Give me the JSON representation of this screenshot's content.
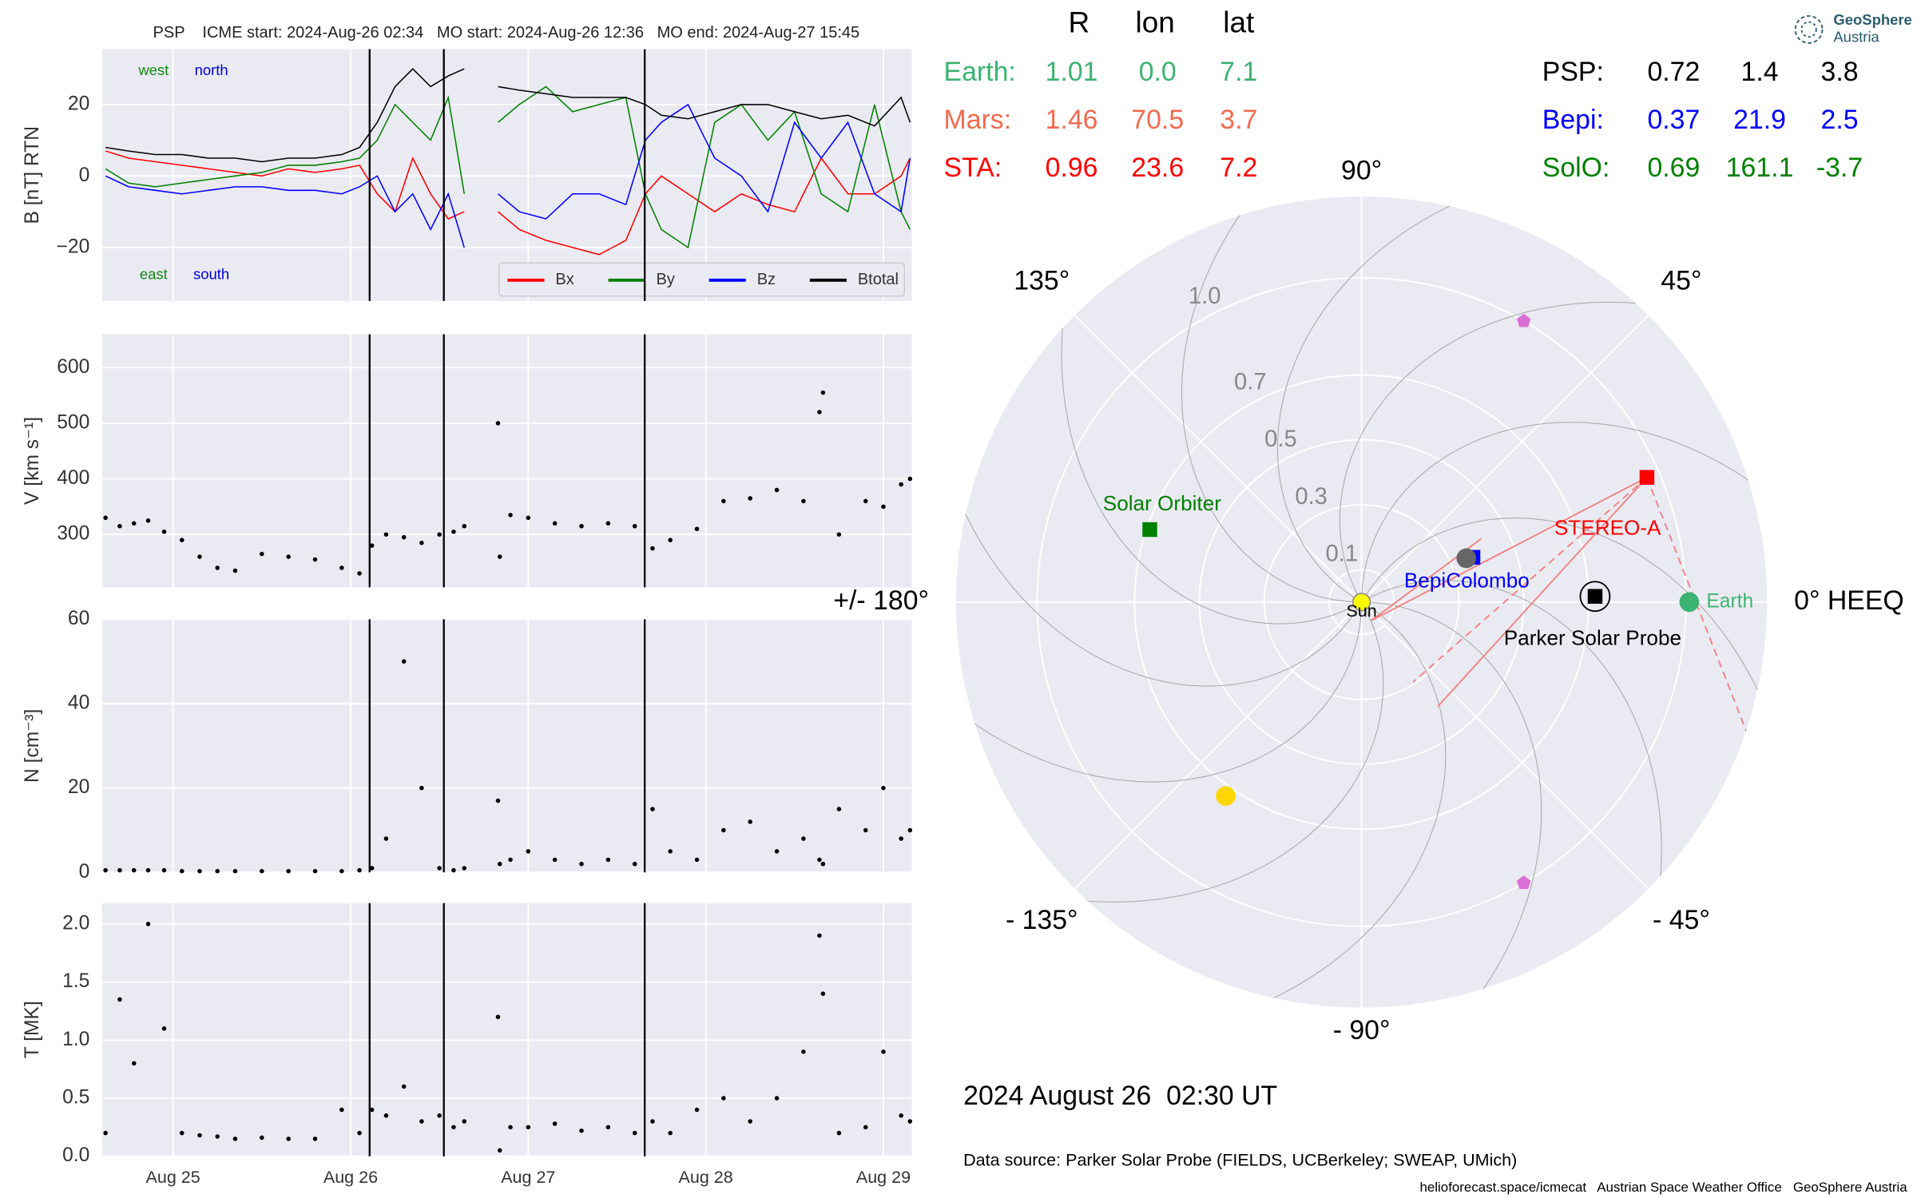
{
  "chart_data": [
    {
      "type": "line",
      "title": "PSP    ICME start: 2024-Aug-26 02:34   MO start: 2024-Aug-26 12:36   MO end: 2024-Aug-27 15:45",
      "ylabel": "B [nT] RTN",
      "ylim": [
        -35,
        35.5
      ],
      "yticks": [
        {
          "value": -20,
          "label": "−20"
        },
        0,
        20
      ],
      "grid": true,
      "legend_loc": "lower right",
      "annotations": [
        {
          "text": "west",
          "color": "#118811"
        },
        {
          "text": "north",
          "color": "#0000dd"
        },
        {
          "text": "east",
          "color": "#118811"
        },
        {
          "text": "south",
          "color": "#0000dd"
        }
      ],
      "x": [
        24.62,
        24.75,
        24.9,
        25.05,
        25.2,
        25.35,
        25.5,
        25.65,
        25.8,
        25.95,
        26.05,
        26.15,
        26.25,
        26.35,
        26.45,
        26.55,
        26.64,
        26.72,
        26.83,
        26.95,
        27.1,
        27.25,
        27.4,
        27.55,
        27.66,
        27.75,
        27.9,
        28.05,
        28.2,
        28.35,
        28.5,
        28.65,
        28.8,
        28.95,
        29.1,
        29.15
      ],
      "series": [
        {
          "name": "Bx",
          "color": "#ff0000",
          "values": [
            7,
            5,
            4,
            3,
            2,
            1,
            0,
            2,
            1,
            2,
            3,
            -5,
            -10,
            5,
            -5,
            -12,
            -10,
            null,
            -10,
            -15,
            -18,
            -20,
            -22,
            -18,
            -5,
            0,
            -5,
            -10,
            -5,
            -8,
            -10,
            5,
            -5,
            -5,
            0,
            5
          ]
        },
        {
          "name": "By",
          "color": "#008000",
          "values": [
            2,
            -2,
            -3,
            -2,
            -1,
            0,
            1,
            3,
            3,
            4,
            5,
            10,
            20,
            15,
            10,
            22,
            -5,
            null,
            15,
            20,
            25,
            18,
            20,
            22,
            -5,
            -15,
            -20,
            15,
            20,
            10,
            18,
            -5,
            -10,
            20,
            -10,
            -15
          ]
        },
        {
          "name": "Bz",
          "color": "#0000ff",
          "values": [
            0,
            -3,
            -4,
            -5,
            -4,
            -3,
            -3,
            -4,
            -4,
            -5,
            -3,
            0,
            -10,
            -5,
            -15,
            -5,
            -20,
            null,
            -5,
            -10,
            -12,
            -5,
            -5,
            -8,
            10,
            15,
            20,
            5,
            0,
            -10,
            15,
            5,
            15,
            -5,
            -10,
            5
          ]
        },
        {
          "name": "Btotal",
          "color": "#000000",
          "values": [
            8,
            7,
            6,
            6,
            5,
            5,
            4,
            5,
            5,
            6,
            8,
            15,
            25,
            30,
            25,
            28,
            30,
            null,
            25,
            24,
            23,
            22,
            22,
            22,
            20,
            17,
            16,
            18,
            20,
            20,
            18,
            16,
            17,
            14,
            22,
            15
          ]
        }
      ]
    },
    {
      "type": "scatter",
      "ylabel": "V [km s⁻¹]",
      "ylim": [
        205,
        660
      ],
      "yticks": [
        300,
        400,
        500,
        600
      ],
      "grid": true,
      "color": "#000000",
      "x": [
        24.62,
        24.7,
        24.78,
        24.86,
        24.95,
        25.05,
        25.15,
        25.25,
        25.35,
        25.5,
        25.65,
        25.8,
        25.95,
        26.05,
        26.12,
        26.2,
        26.3,
        26.4,
        26.5,
        26.58,
        26.64,
        26.83,
        26.84,
        26.9,
        27.0,
        27.15,
        27.3,
        27.45,
        27.6,
        27.7,
        27.8,
        27.95,
        28.1,
        28.25,
        28.4,
        28.55,
        28.64,
        28.66,
        28.75,
        28.9,
        29.0,
        29.1,
        29.15
      ],
      "values": [
        330,
        315,
        320,
        325,
        305,
        290,
        260,
        240,
        235,
        265,
        260,
        255,
        240,
        230,
        280,
        300,
        295,
        285,
        300,
        305,
        315,
        500,
        260,
        335,
        330,
        320,
        315,
        320,
        315,
        275,
        290,
        310,
        360,
        365,
        380,
        360,
        520,
        555,
        300,
        360,
        350,
        390,
        400
      ]
    },
    {
      "type": "scatter",
      "ylabel": "N [cm⁻³]",
      "ylim": [
        0,
        60
      ],
      "yticks": [
        0,
        20,
        40,
        60
      ],
      "grid": true,
      "color": "#000000",
      "x": [
        24.62,
        24.7,
        24.78,
        24.86,
        24.95,
        25.05,
        25.15,
        25.25,
        25.35,
        25.5,
        25.65,
        25.8,
        25.95,
        26.05,
        26.12,
        26.2,
        26.3,
        26.4,
        26.5,
        26.58,
        26.64,
        26.83,
        26.84,
        26.9,
        27.0,
        27.15,
        27.3,
        27.45,
        27.6,
        27.7,
        27.8,
        27.95,
        28.1,
        28.25,
        28.4,
        28.55,
        28.64,
        28.66,
        28.75,
        28.9,
        29.0,
        29.1,
        29.15
      ],
      "values": [
        0.5,
        0.5,
        0.5,
        0.5,
        0.5,
        0.3,
        0.3,
        0.3,
        0.3,
        0.3,
        0.3,
        0.3,
        0.3,
        0.5,
        1,
        8,
        50,
        20,
        1,
        0.5,
        1,
        17,
        2,
        3,
        5,
        3,
        2,
        3,
        2,
        15,
        5,
        3,
        10,
        12,
        5,
        8,
        3,
        2,
        15,
        10,
        20,
        8,
        10
      ]
    },
    {
      "type": "scatter",
      "ylabel": "T [MK]",
      "ylim": [
        0,
        2.18
      ],
      "yticks": [
        {
          "value": 0,
          "label": "0.0"
        },
        0.5,
        {
          "value": 1,
          "label": "1.0"
        },
        1.5,
        {
          "value": 2,
          "label": "2.0"
        }
      ],
      "xlim": [
        24.6,
        29.16
      ],
      "xticks": [
        {
          "value": 25,
          "label": "Aug 25"
        },
        {
          "value": 26,
          "label": "Aug 26"
        },
        {
          "value": 27,
          "label": "Aug 27"
        },
        {
          "value": 28,
          "label": "Aug 28"
        },
        {
          "value": 29,
          "label": "Aug 29"
        }
      ],
      "vlines": [
        26.107,
        26.525,
        27.656
      ],
      "grid": true,
      "color": "#000000",
      "x": [
        24.62,
        24.7,
        24.78,
        24.86,
        24.95,
        25.05,
        25.15,
        25.25,
        25.35,
        25.5,
        25.65,
        25.8,
        25.95,
        26.05,
        26.12,
        26.2,
        26.3,
        26.4,
        26.5,
        26.58,
        26.64,
        26.83,
        26.84,
        26.9,
        27.0,
        27.15,
        27.3,
        27.45,
        27.6,
        27.7,
        27.8,
        27.95,
        28.1,
        28.25,
        28.4,
        28.55,
        28.64,
        28.66,
        28.75,
        28.9,
        29.0,
        29.1,
        29.15
      ],
      "values": [
        0.2,
        1.35,
        0.8,
        2.0,
        1.1,
        0.2,
        0.18,
        0.17,
        0.15,
        0.16,
        0.15,
        0.15,
        0.4,
        0.2,
        0.4,
        0.35,
        0.6,
        0.3,
        0.35,
        0.25,
        0.3,
        1.2,
        0.05,
        0.25,
        0.25,
        0.28,
        0.22,
        0.25,
        0.2,
        0.3,
        0.2,
        0.4,
        0.5,
        0.3,
        0.5,
        0.9,
        1.9,
        1.4,
        0.2,
        0.25,
        0.9,
        0.35,
        0.3
      ]
    },
    {
      "type": "polar",
      "rlim": [
        0,
        1.25
      ],
      "rticks": [
        0.1,
        0.3,
        0.5,
        0.7,
        {
          "value": 1,
          "label": "1.0"
        }
      ],
      "angle_ticks": [
        {
          "value": 0,
          "label": "0° HEEQ"
        },
        {
          "value": 45,
          "label": "45°"
        },
        {
          "value": 90,
          "label": "90°"
        },
        {
          "value": 135,
          "label": "135°"
        },
        {
          "value": 180,
          "label": "+/- 180°"
        },
        {
          "value": -135,
          "label": "- 135°"
        },
        {
          "value": -90,
          "label": "- 90°"
        },
        {
          "value": -45,
          "label": "- 45°"
        }
      ],
      "objects": [
        {
          "label": "Sun",
          "r": 0,
          "lon": 0,
          "color": "#ffff00",
          "marker": "circle"
        },
        {
          "label": "Earth",
          "r": 1.01,
          "lon": 0.0,
          "color": "#3cb371",
          "marker": "circle"
        },
        {
          "label": "STEREO-A",
          "r": 0.96,
          "lon": 23.6,
          "color": "#ff0000",
          "marker": "square"
        },
        {
          "label": "BepiColombo",
          "r": 0.37,
          "lon": 21.9,
          "color": "#0000ff",
          "marker": "square"
        },
        {
          "label": "Parker Solar Probe",
          "r": 0.72,
          "lon": 1.4,
          "color": "#000000",
          "marker": "square"
        },
        {
          "label": "Solar Orbiter",
          "r": 0.69,
          "lon": 161.1,
          "color": "#008000",
          "marker": "square"
        },
        {
          "r": 0.35,
          "lon": 22.7,
          "color": "#666666",
          "marker": "circle"
        },
        {
          "r": 0.73,
          "lon": -125,
          "color": "#ffd700",
          "marker": "circle"
        },
        {
          "r": 1.0,
          "lon": 60,
          "color": "#da70d6",
          "marker": "pentagon"
        },
        {
          "r": 1.0,
          "lon": -60,
          "color": "#da70d6",
          "marker": "pentagon"
        }
      ],
      "table": {
        "columns": [
          "R",
          "lon",
          "lat"
        ],
        "rows": [
          {
            "name": "Earth:",
            "color": "#3cb371",
            "cells": [
              "1.01",
              "0.0",
              "7.1"
            ]
          },
          {
            "name": "Mars:",
            "color": "#f26b4f",
            "cells": [
              "1.46",
              "70.5",
              "3.7"
            ]
          },
          {
            "name": "STA:",
            "color": "#ff0000",
            "cells": [
              "0.96",
              "23.6",
              "7.2"
            ]
          },
          {
            "name": "PSP:",
            "color": "#000000",
            "cells": [
              "0.72",
              "1.4",
              "3.8"
            ]
          },
          {
            "name": "Bepi:",
            "color": "#0000ff",
            "cells": [
              "0.37",
              "21.9",
              "2.5"
            ]
          },
          {
            "name": "SolO:",
            "color": "#008000",
            "cells": [
              "0.69",
              "161.1",
              "-3.7"
            ]
          }
        ]
      },
      "date_label": "2024 August 26  02:30 UT",
      "source_note": "Data source: Parker Solar Probe (FIELDS, UCBerkeley; SWEAP, UMich)",
      "credits": "helioforecast.space/icmecat   Austrian Space Weather Office   GeoSphere Austria",
      "logo": [
        "GeoSphere",
        "Austria"
      ]
    }
  ]
}
